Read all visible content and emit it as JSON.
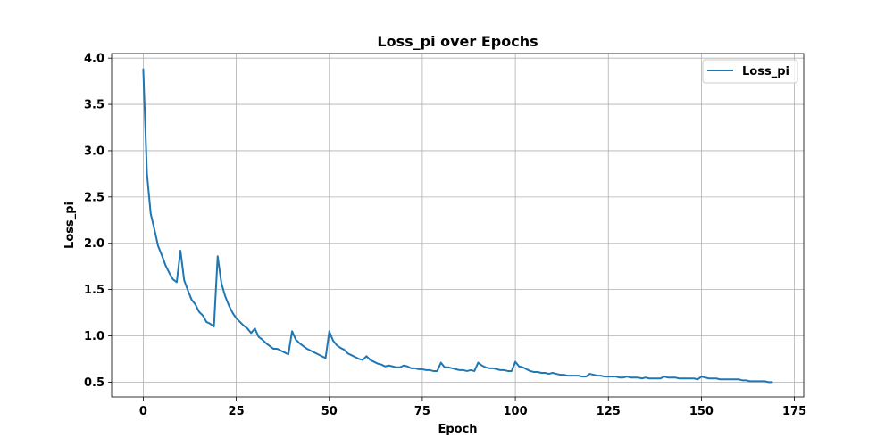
{
  "chart_data": {
    "type": "line",
    "title": "Loss_pi over Epochs",
    "xlabel": "Epoch",
    "ylabel": "Loss_pi",
    "xlim": [
      -8.5,
      177.5
    ],
    "ylim": [
      0.34,
      4.05
    ],
    "xticks": [
      0,
      25,
      50,
      75,
      100,
      125,
      150,
      175
    ],
    "yticks": [
      0.5,
      1.0,
      1.5,
      2.0,
      2.5,
      3.0,
      3.5,
      4.0
    ],
    "xtick_labels": [
      "0",
      "25",
      "50",
      "75",
      "100",
      "125",
      "150",
      "175"
    ],
    "ytick_labels": [
      "0.5",
      "1.0",
      "1.5",
      "2.0",
      "2.5",
      "3.0",
      "3.5",
      "4.0"
    ],
    "grid": true,
    "legend_position": "top-right",
    "color": "#1f77b4",
    "series": [
      {
        "name": "Loss_pi",
        "x": [
          0,
          1,
          2,
          3,
          4,
          5,
          6,
          7,
          8,
          9,
          10,
          11,
          12,
          13,
          14,
          15,
          16,
          17,
          18,
          19,
          20,
          21,
          22,
          23,
          24,
          25,
          26,
          27,
          28,
          29,
          30,
          31,
          32,
          33,
          34,
          35,
          36,
          37,
          38,
          39,
          40,
          41,
          42,
          43,
          44,
          45,
          46,
          47,
          48,
          49,
          50,
          51,
          52,
          53,
          54,
          55,
          56,
          57,
          58,
          59,
          60,
          61,
          62,
          63,
          64,
          65,
          66,
          67,
          68,
          69,
          70,
          71,
          72,
          73,
          74,
          75,
          76,
          77,
          78,
          79,
          80,
          81,
          82,
          83,
          84,
          85,
          86,
          87,
          88,
          89,
          90,
          91,
          92,
          93,
          94,
          95,
          96,
          97,
          98,
          99,
          100,
          101,
          102,
          103,
          104,
          105,
          106,
          107,
          108,
          109,
          110,
          111,
          112,
          113,
          114,
          115,
          116,
          117,
          118,
          119,
          120,
          121,
          122,
          123,
          124,
          125,
          126,
          127,
          128,
          129,
          130,
          131,
          132,
          133,
          134,
          135,
          136,
          137,
          138,
          139,
          140,
          141,
          142,
          143,
          144,
          145,
          146,
          147,
          148,
          149,
          150,
          151,
          152,
          153,
          154,
          155,
          156,
          157,
          158,
          159,
          160,
          161,
          162,
          163,
          164,
          165,
          166,
          167,
          168,
          169
        ],
        "y": [
          3.88,
          2.75,
          2.32,
          2.15,
          1.97,
          1.87,
          1.76,
          1.68,
          1.61,
          1.58,
          1.92,
          1.6,
          1.49,
          1.39,
          1.34,
          1.26,
          1.22,
          1.15,
          1.13,
          1.1,
          1.86,
          1.57,
          1.43,
          1.33,
          1.25,
          1.19,
          1.15,
          1.11,
          1.08,
          1.03,
          1.08,
          0.99,
          0.96,
          0.92,
          0.89,
          0.86,
          0.86,
          0.84,
          0.82,
          0.8,
          1.05,
          0.96,
          0.92,
          0.89,
          0.86,
          0.84,
          0.82,
          0.8,
          0.78,
          0.76,
          1.05,
          0.95,
          0.9,
          0.87,
          0.85,
          0.81,
          0.79,
          0.77,
          0.75,
          0.74,
          0.78,
          0.74,
          0.72,
          0.7,
          0.69,
          0.67,
          0.68,
          0.67,
          0.66,
          0.66,
          0.68,
          0.67,
          0.65,
          0.65,
          0.64,
          0.64,
          0.63,
          0.63,
          0.62,
          0.62,
          0.71,
          0.66,
          0.66,
          0.65,
          0.64,
          0.63,
          0.63,
          0.62,
          0.63,
          0.62,
          0.71,
          0.68,
          0.66,
          0.65,
          0.65,
          0.64,
          0.63,
          0.63,
          0.62,
          0.62,
          0.72,
          0.67,
          0.66,
          0.64,
          0.62,
          0.61,
          0.61,
          0.6,
          0.6,
          0.59,
          0.6,
          0.59,
          0.58,
          0.58,
          0.57,
          0.57,
          0.57,
          0.57,
          0.56,
          0.56,
          0.59,
          0.58,
          0.57,
          0.57,
          0.56,
          0.56,
          0.56,
          0.56,
          0.55,
          0.55,
          0.56,
          0.55,
          0.55,
          0.55,
          0.54,
          0.55,
          0.54,
          0.54,
          0.54,
          0.54,
          0.56,
          0.55,
          0.55,
          0.55,
          0.54,
          0.54,
          0.54,
          0.54,
          0.54,
          0.53,
          0.56,
          0.55,
          0.54,
          0.54,
          0.54,
          0.53,
          0.53,
          0.53,
          0.53,
          0.53,
          0.53,
          0.52,
          0.52,
          0.51,
          0.51,
          0.51,
          0.51,
          0.51,
          0.5,
          0.5
        ]
      }
    ]
  }
}
